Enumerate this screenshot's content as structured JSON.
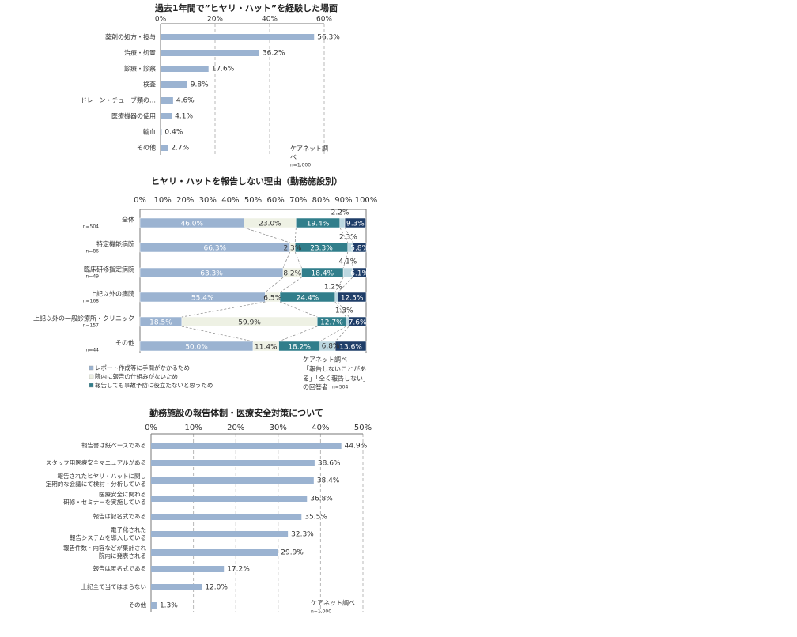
{
  "colors": {
    "bar": "#9bb3d1",
    "grid": "#b8b8b8",
    "axis": "#777777",
    "stack": [
      "#9bb3d1",
      "#eef1e4",
      "#317e8b",
      "#bcd7e0",
      "#1f3e69"
    ],
    "stack_text": [
      "#ffffff",
      "#333333",
      "#ffffff",
      "#333333",
      "#ffffff"
    ]
  },
  "chart_data": [
    {
      "type": "bar",
      "orientation": "horizontal",
      "title": "過去1年間で”ヒヤリ・ハット”を経験した場面",
      "categories": [
        "薬剤の処方・投与",
        "治療・処置",
        "診療・診察",
        "検査",
        "ドレーン・チューブ類の…",
        "医療機器の使用",
        "輸血",
        "その他"
      ],
      "values": [
        56.3,
        36.2,
        17.6,
        9.8,
        4.6,
        4.1,
        0.4,
        2.7
      ],
      "value_labels": [
        "56.3%",
        "36.2%",
        "17.6%",
        "9.8%",
        "4.6%",
        "4.1%",
        "0.4%",
        "2.7%"
      ],
      "xlim": [
        0,
        60
      ],
      "ticks": [
        "0%",
        "20%",
        "40%",
        "60%"
      ],
      "grid": true,
      "source": [
        "ケアネット調",
        "べ",
        "n=1,000"
      ]
    },
    {
      "type": "bar",
      "stacked": true,
      "orientation": "horizontal",
      "title": "ヒヤリ・ハットを報告しない理由（勤務施設別）",
      "categories": [
        "全体",
        "特定機能病院",
        "臨床研修指定病院",
        "上記以外の病院",
        "上記以外の一般診療所・クリニック",
        "その他"
      ],
      "category_n": [
        "n=504",
        "n=86",
        "n=49",
        "n=168",
        "n=157",
        "n=44"
      ],
      "series": [
        {
          "name": "レポート作成等に手間がかかるため",
          "values": [
            46.0,
            66.3,
            63.3,
            55.4,
            18.5,
            50.0
          ]
        },
        {
          "name": "院内に報告の仕組みがないため",
          "values": [
            23.0,
            2.3,
            8.2,
            6.5,
            59.9,
            11.4
          ]
        },
        {
          "name": "",
          "values": [
            19.4,
            23.3,
            18.4,
            24.4,
            12.7,
            18.2
          ]
        },
        {
          "name": "",
          "values": [
            2.2,
            2.3,
            4.1,
            1.2,
            1.3,
            6.8
          ]
        },
        {
          "name": "報告しても事故予防に役立たないと思うため",
          "values": [
            9.3,
            5.8,
            6.1,
            12.5,
            7.6,
            13.6
          ]
        }
      ],
      "value_labels": [
        [
          "46.0%",
          "23.0%",
          "19.4%",
          "2.2%",
          "9.3%"
        ],
        [
          "66.3%",
          "2.3%",
          "23.3%",
          "2.3%",
          "5.8%"
        ],
        [
          "63.3%",
          "8.2%",
          "18.4%",
          "4.1%",
          "6.1%"
        ],
        [
          "55.4%",
          "6.5%",
          "24.4%",
          "1.2%",
          "12.5%"
        ],
        [
          "18.5%",
          "59.9%",
          "12.7%",
          "1.3%",
          "7.6%"
        ],
        [
          "50.0%",
          "11.4%",
          "18.2%",
          "6.8%",
          "13.6%"
        ]
      ],
      "xlim": [
        0,
        100
      ],
      "ticks": [
        "0%",
        "10%",
        "20%",
        "30%",
        "40%",
        "50%",
        "60%",
        "70%",
        "80%",
        "90%",
        "100%"
      ],
      "legend": [
        "レポート作成等に手間がかかるため",
        "院内に報告の仕組みがないため",
        "報告しても事故予防に役立たないと思うため"
      ],
      "source": [
        "ケアネット調べ",
        "「報告しないことがあ",
        "る」「全く報告しない」",
        "の回答者",
        "n=504"
      ]
    },
    {
      "type": "bar",
      "orientation": "horizontal",
      "title": "勤務施設の報告体制・医療安全対策について",
      "categories": [
        [
          "報告書は紙ベースである"
        ],
        [
          "スタッフ用医療安全マニュアルがある"
        ],
        [
          "報告されたヒヤリ・ハットに関し",
          "定期的な会議にて検討・分析している"
        ],
        [
          "医療安全に関わる",
          "研修・セミナーを実施している"
        ],
        [
          "報告は記名式である"
        ],
        [
          "電子化された",
          "報告システムを導入している"
        ],
        [
          "報告件数・内容などが集計され",
          "院内に発表される"
        ],
        [
          "報告は匿名式である"
        ],
        [
          "上記全て当てはまらない"
        ],
        [
          "その他"
        ]
      ],
      "values": [
        44.9,
        38.6,
        38.4,
        36.8,
        35.5,
        32.3,
        29.9,
        17.2,
        12.0,
        1.3
      ],
      "value_labels": [
        "44.9%",
        "38.6%",
        "38.4%",
        "36.8%",
        "35.5%",
        "32.3%",
        "29.9%",
        "17.2%",
        "12.0%",
        "1.3%"
      ],
      "xlim": [
        0,
        50
      ],
      "ticks": [
        "0%",
        "10%",
        "20%",
        "30%",
        "40%",
        "50%"
      ],
      "grid": true,
      "source": [
        "ケアネット調べ",
        "n=1,000"
      ]
    }
  ]
}
